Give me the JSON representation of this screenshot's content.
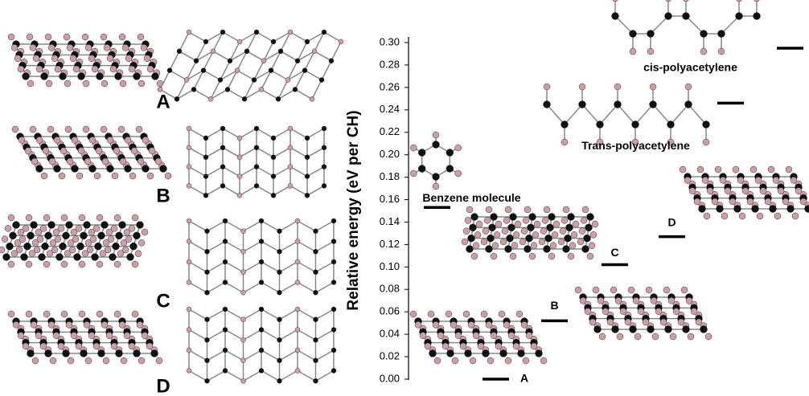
{
  "panel_labels": [
    "A",
    "B",
    "C",
    "D"
  ],
  "chart_data": {
    "type": "level",
    "ylabel": "Relative energy (eV per CH)",
    "categories": [
      "A",
      "B",
      "C",
      "D",
      "Benzene molecule",
      "Trans-polyacetylene",
      "cis-polyacetylene"
    ],
    "values": [
      0.0,
      0.052,
      0.102,
      0.127,
      0.153,
      0.246,
      0.295
    ],
    "color": "#000000",
    "ylim": [
      0,
      0.3
    ],
    "yticks": [
      {
        "value": 0,
        "label": "0.00"
      },
      0.02,
      0.04,
      0.06,
      0.08,
      {
        "value": 0.1,
        "label": "0.10"
      },
      0.12,
      0.14,
      0.16,
      0.18,
      {
        "value": 0.2,
        "label": "0.20"
      },
      0.22,
      0.24,
      0.26,
      0.28,
      {
        "value": 0.3,
        "label": "0.30"
      }
    ]
  }
}
